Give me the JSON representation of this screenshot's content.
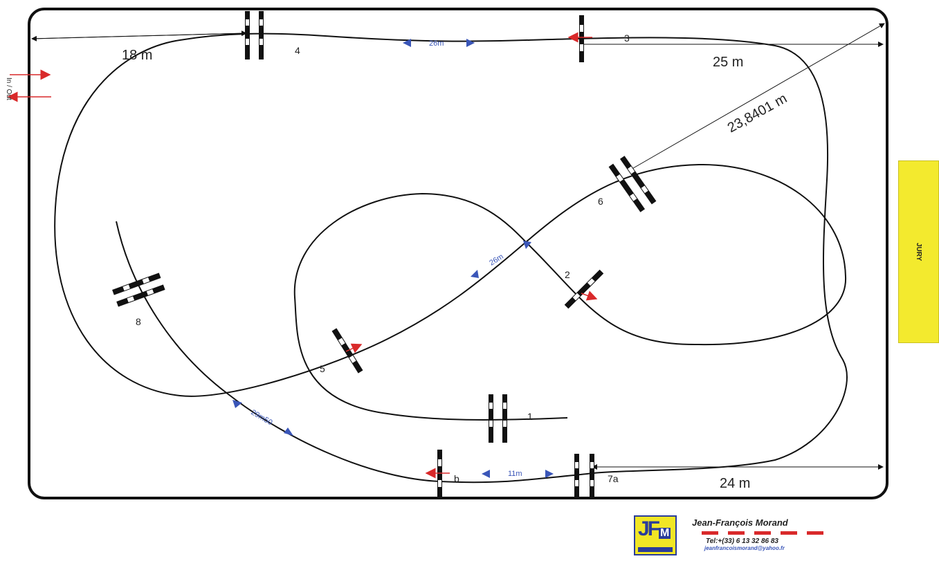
{
  "dimensions": {
    "top_left": "18 m",
    "top_right": "25 m",
    "diagonal": "23,8401 m",
    "bottom_right": "24 m"
  },
  "obstacles": {
    "o1": "1",
    "o2": "2",
    "o3": "3",
    "o4": "4",
    "o5": "5",
    "o6": "6",
    "o7a": "7a",
    "o7b": "b",
    "o8": "8"
  },
  "distances": {
    "top": "26m",
    "middle": "26m",
    "bottom": "11m",
    "left": "29m50"
  },
  "in_out": "In / Out",
  "jury_label": "JURY",
  "colors": {
    "line": "#111111",
    "distance": "#3a56b8",
    "arrow": "#d9292a",
    "jury": "#f3ea2e"
  },
  "designer": {
    "name": "Jean-François Morand",
    "tel": "Tel:+(33) 6 13 32 86 83",
    "email": "jeanfrancoismorand@yahoo.fr"
  }
}
